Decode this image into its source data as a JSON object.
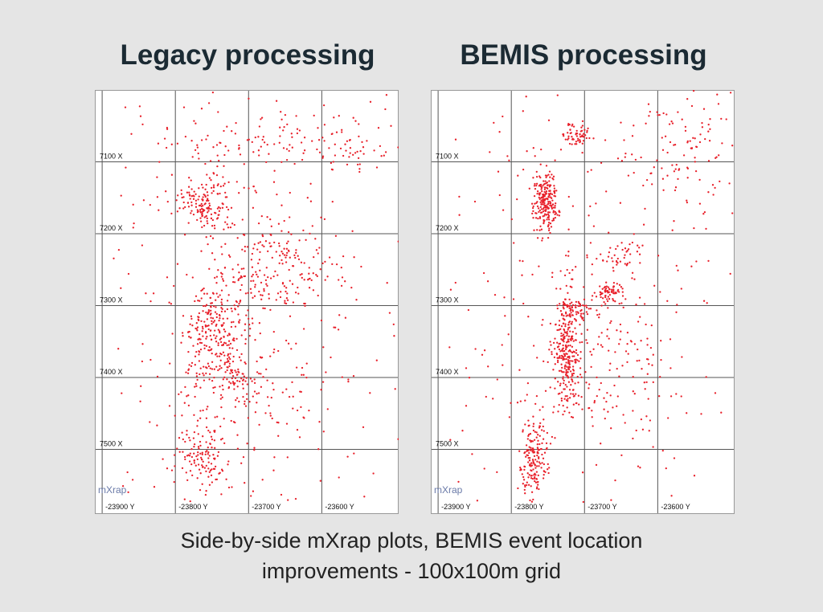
{
  "caption": {
    "line1": "Side-by-side mXrap plots, BEMIS event location",
    "line2": "improvements - 100x100m grid"
  },
  "colors": {
    "background": "#e5e5e5",
    "point": "#e8202a",
    "grid": "#555555",
    "title": "#1b2a33"
  },
  "chart_data": [
    {
      "type": "scatter",
      "title": "Legacy processing",
      "watermark": "mXrap",
      "xlabel": "",
      "ylabel": "",
      "x_ticks": [
        "-23900 Y",
        "-23800 Y",
        "-23700 Y",
        "-23600 Y"
      ],
      "y_ticks": [
        "7100 X",
        "7200 X",
        "7300 X",
        "7400 X",
        "7500 X"
      ],
      "xlim": [
        -23910,
        -23495
      ],
      "ylim": [
        7000,
        7590
      ],
      "grid": true,
      "clusters": [
        {
          "x": -23760,
          "y": 7160,
          "sx": 18,
          "sy": 20,
          "n": 150
        },
        {
          "x": -23745,
          "y": 7340,
          "sx": 22,
          "sy": 35,
          "n": 260
        },
        {
          "x": -23715,
          "y": 7395,
          "sx": 10,
          "sy": 16,
          "n": 40
        },
        {
          "x": -23765,
          "y": 7515,
          "sx": 22,
          "sy": 28,
          "n": 130
        },
        {
          "x": -23665,
          "y": 7250,
          "sx": 45,
          "sy": 35,
          "n": 180
        },
        {
          "x": -23720,
          "y": 7070,
          "sx": 60,
          "sy": 18,
          "n": 60
        },
        {
          "x": -23580,
          "y": 7070,
          "sx": 40,
          "sy": 25,
          "n": 70
        },
        {
          "x": -23680,
          "y": 7420,
          "sx": 55,
          "sy": 30,
          "n": 80
        },
        {
          "x": -23700,
          "y": 7300,
          "sx": 120,
          "sy": 260,
          "n": 420
        }
      ]
    },
    {
      "type": "scatter",
      "title": "BEMIS processing",
      "watermark": "mXrap",
      "xlabel": "",
      "ylabel": "",
      "x_ticks": [
        "-23900 Y",
        "-23800 Y",
        "-23700 Y",
        "-23600 Y"
      ],
      "y_ticks": [
        "7100 X",
        "7200 X",
        "7300 X",
        "7400 X",
        "7500 X"
      ],
      "xlim": [
        -23910,
        -23495
      ],
      "ylim": [
        7000,
        7590
      ],
      "grid": true,
      "clusters": [
        {
          "x": -23710,
          "y": 7060,
          "sx": 10,
          "sy": 8,
          "n": 60
        },
        {
          "x": -23753,
          "y": 7155,
          "sx": 8,
          "sy": 22,
          "n": 220
        },
        {
          "x": -23725,
          "y": 7360,
          "sx": 8,
          "sy": 40,
          "n": 250
        },
        {
          "x": -23715,
          "y": 7305,
          "sx": 12,
          "sy": 7,
          "n": 60
        },
        {
          "x": -23665,
          "y": 7280,
          "sx": 10,
          "sy": 8,
          "n": 60
        },
        {
          "x": -23650,
          "y": 7230,
          "sx": 18,
          "sy": 10,
          "n": 40
        },
        {
          "x": -23770,
          "y": 7510,
          "sx": 10,
          "sy": 30,
          "n": 170
        },
        {
          "x": -23560,
          "y": 7090,
          "sx": 45,
          "sy": 40,
          "n": 100
        },
        {
          "x": -23670,
          "y": 7380,
          "sx": 55,
          "sy": 50,
          "n": 130
        },
        {
          "x": -23700,
          "y": 7300,
          "sx": 130,
          "sy": 260,
          "n": 360
        }
      ]
    }
  ]
}
